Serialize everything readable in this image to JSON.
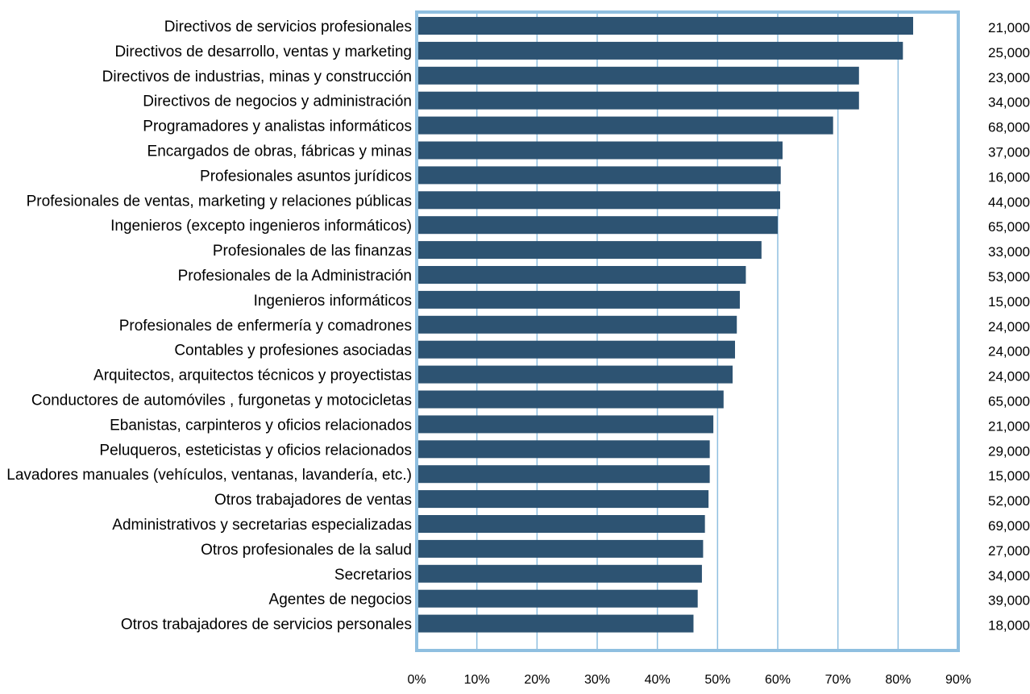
{
  "chart_data": {
    "type": "bar",
    "orientation": "horizontal",
    "title": "",
    "xlabel": "",
    "ylabel": "",
    "xlim": [
      0,
      90
    ],
    "x_ticks": [
      "0%",
      "10%",
      "20%",
      "30%",
      "40%",
      "50%",
      "60%",
      "70%",
      "80%",
      "90%"
    ],
    "grid": "vertical",
    "colors": {
      "bar": "#2d5372",
      "frame": "#8fbfe0",
      "grid": "#8fbfe0"
    },
    "categories": [
      "Directivos de servicios profesionales",
      "Directivos de desarrollo, ventas y marketing",
      "Directivos de industrias, minas y construcción",
      "Directivos de negocios y administración",
      "Programadores y analistas informáticos",
      "Encargados de obras, fábricas y minas",
      "Profesionales asuntos jurídicos",
      "Profesionales de ventas, marketing y relaciones públicas",
      "Ingenieros (excepto ingenieros informáticos)",
      "Profesionales de las finanzas",
      "Profesionales de la Administración",
      "Ingenieros informáticos",
      "Profesionales de enfermería y comadrones",
      "Contables y profesiones asociadas",
      "Arquitectos, arquitectos técnicos y proyectistas",
      "Conductores de automóviles , furgonetas y motocicletas",
      "Ebanistas, carpinteros y oficios relacionados",
      "Peluqueros, esteticistas y oficios relacionados",
      "Lavadores manuales (vehículos, ventanas, lavandería, etc.)",
      "Otros trabajadores de ventas",
      "Administrativos y secretarias especializadas",
      "Otros profesionales de la salud",
      "Secretarios",
      "Agentes de negocios",
      "Otros trabajadores de servicios personales"
    ],
    "values": [
      82.5,
      80.8,
      73.5,
      73.5,
      69.2,
      60.8,
      60.5,
      60.4,
      60.0,
      57.3,
      54.7,
      53.7,
      53.2,
      52.9,
      52.5,
      51.0,
      49.3,
      48.7,
      48.7,
      48.5,
      47.9,
      47.6,
      47.4,
      46.7,
      46.0
    ],
    "side_labels": [
      "21,000",
      "25,000",
      "23,000",
      "34,000",
      "68,000",
      "37,000",
      "16,000",
      "44,000",
      "65,000",
      "33,000",
      "53,000",
      "15,000",
      "24,000",
      "24,000",
      "24,000",
      "65,000",
      "21,000",
      "29,000",
      "15,000",
      "52,000",
      "69,000",
      "27,000",
      "34,000",
      "39,000",
      "18,000"
    ]
  }
}
